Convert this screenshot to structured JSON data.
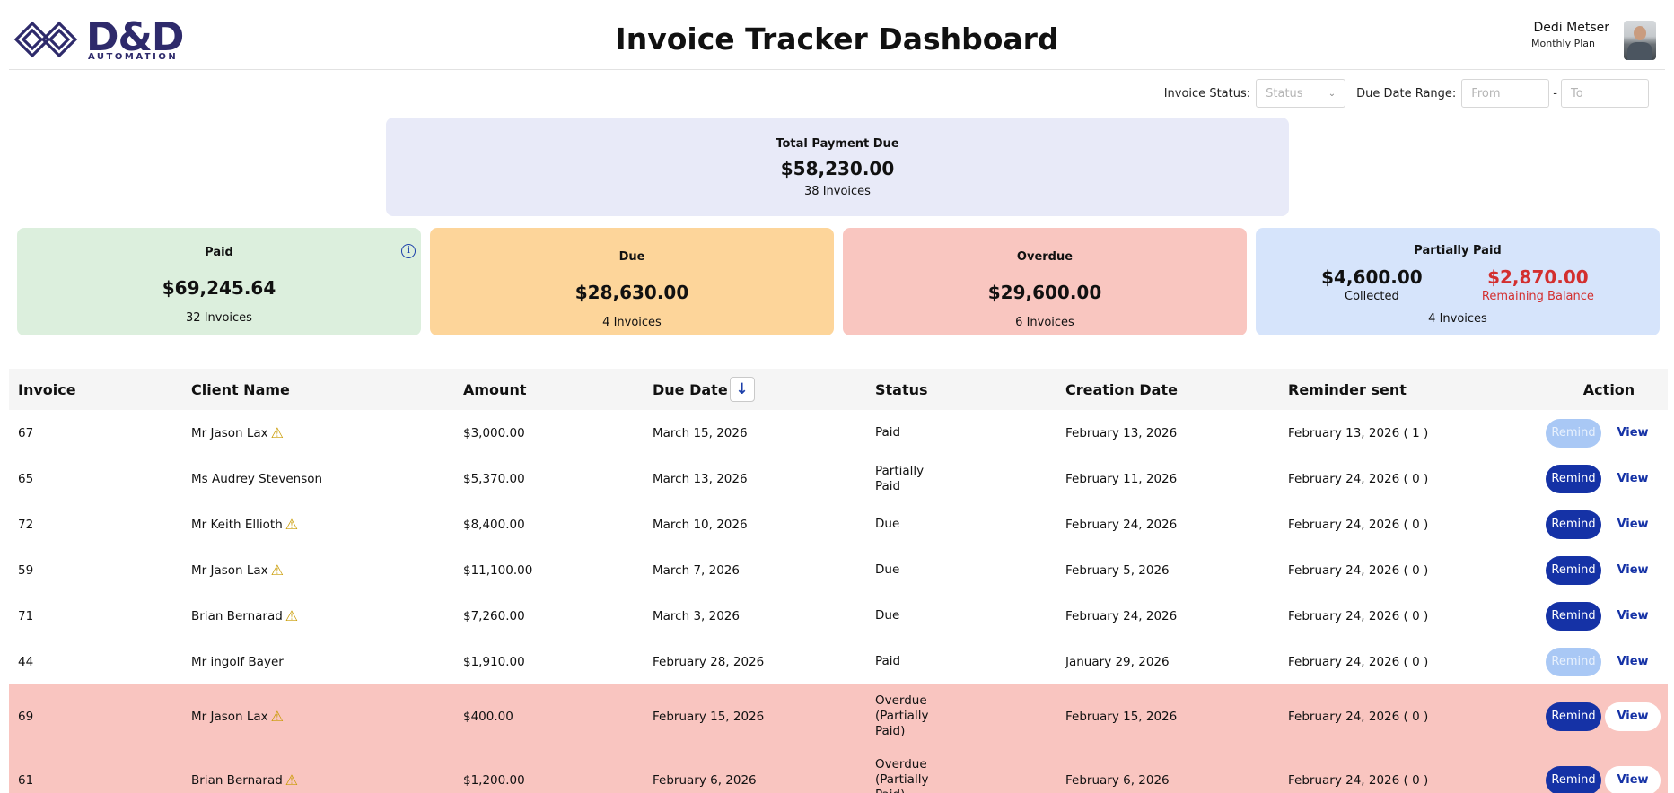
{
  "header": {
    "logo_text": "D&D",
    "logo_sub": "AUTOMATION",
    "title": "Invoice Tracker Dashboard",
    "user_name": "Dedi Metser",
    "user_plan": "Monthly Plan"
  },
  "filters": {
    "status_label": "Invoice Status:",
    "status_placeholder": "Status",
    "date_label": "Due Date Range:",
    "from_placeholder": "From",
    "to_placeholder": "To",
    "separator": "-"
  },
  "summary": {
    "total": {
      "label": "Total Payment Due",
      "value": "$58,230.00",
      "count": "38 Invoices"
    },
    "paid": {
      "label": "Paid",
      "value": "$69,245.64",
      "count": "32 Invoices"
    },
    "due": {
      "label": "Due",
      "value": "$28,630.00",
      "count": "4 Invoices"
    },
    "overdue": {
      "label": "Overdue",
      "value": "$29,600.00",
      "count": "6 Invoices"
    },
    "partial": {
      "label": "Partially Paid",
      "collected_value": "$4,600.00",
      "collected_label": "Collected",
      "remaining_value": "$2,870.00",
      "remaining_label": "Remaining Balance",
      "count": "4 Invoices"
    }
  },
  "table": {
    "headers": {
      "invoice": "Invoice",
      "client": "Client Name",
      "amount": "Amount",
      "due_date": "Due Date",
      "status": "Status",
      "created": "Creation Date",
      "reminder": "Reminder sent",
      "action": "Action"
    },
    "remind_label": "Remind",
    "view_label": "View",
    "rows": [
      {
        "invoice": "67",
        "client": "Mr Jason Lax",
        "warn": true,
        "amount": "$3,000.00",
        "due": "March 15, 2026",
        "status": "Paid",
        "created": "February 13, 2026",
        "reminder": "February 13, 2026 ( 1 )",
        "remind_disabled": true,
        "overdue": false
      },
      {
        "invoice": "65",
        "client": "Ms Audrey Stevenson",
        "warn": false,
        "amount": "$5,370.00",
        "due": "March 13, 2026",
        "status": "Partially Paid",
        "created": "February 11, 2026",
        "reminder": "February 24, 2026 ( 0 )",
        "remind_disabled": false,
        "overdue": false
      },
      {
        "invoice": "72",
        "client": "Mr Keith Ellioth",
        "warn": true,
        "amount": "$8,400.00",
        "due": "March 10, 2026",
        "status": "Due",
        "created": "February 24, 2026",
        "reminder": "February 24, 2026 ( 0 )",
        "remind_disabled": false,
        "overdue": false
      },
      {
        "invoice": "59",
        "client": "Mr Jason Lax",
        "warn": true,
        "amount": "$11,100.00",
        "due": "March 7, 2026",
        "status": "Due",
        "created": "February 5, 2026",
        "reminder": "February 24, 2026 ( 0 )",
        "remind_disabled": false,
        "overdue": false
      },
      {
        "invoice": "71",
        "client": "Brian Bernarad",
        "warn": true,
        "amount": "$7,260.00",
        "due": "March 3, 2026",
        "status": "Due",
        "created": "February 24, 2026",
        "reminder": "February 24, 2026 ( 0 )",
        "remind_disabled": false,
        "overdue": false
      },
      {
        "invoice": "44",
        "client": "Mr ingolf Bayer",
        "warn": false,
        "amount": "$1,910.00",
        "due": "February 28, 2026",
        "status": "Paid",
        "created": "January 29, 2026",
        "reminder": "February 24, 2026 ( 0 )",
        "remind_disabled": true,
        "overdue": false
      },
      {
        "invoice": "69",
        "client": "Mr Jason Lax",
        "warn": true,
        "amount": "$400.00",
        "due": "February 15, 2026",
        "status": "Overdue (Partially Paid)",
        "created": "February 15, 2026",
        "reminder": "February 24, 2026 ( 0 )",
        "remind_disabled": false,
        "overdue": true
      },
      {
        "invoice": "61",
        "client": "Brian Bernarad",
        "warn": true,
        "amount": "$1,200.00",
        "due": "February 6, 2026",
        "status": "Overdue (Partially Paid)",
        "created": "February 6, 2026",
        "reminder": "February 24, 2026 ( 0 )",
        "remind_disabled": false,
        "overdue": true
      }
    ]
  }
}
